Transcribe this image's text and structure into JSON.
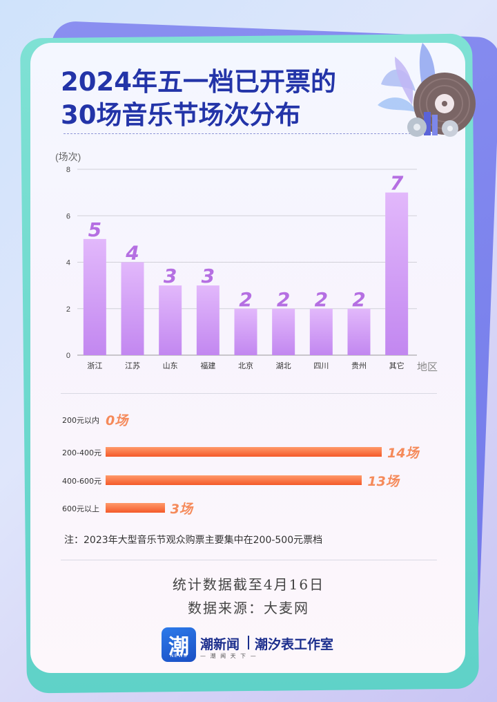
{
  "title": {
    "line1": "2024年五一档已开票的",
    "line2": "30场音乐节场次分布"
  },
  "colors": {
    "title": "#2334a8",
    "bar_top": "#e2b8fb",
    "bar_bottom": "#c287f0",
    "bar_label": "#b56fe2",
    "price_bar": "#f45a2a",
    "price_value": "#f58a5a"
  },
  "chart_data": [
    {
      "type": "bar",
      "ylabel": "(场次)",
      "xlabel": "地区",
      "ylim": [
        0,
        8
      ],
      "yticks": [
        0,
        2,
        4,
        6,
        8
      ],
      "grid": true,
      "categories": [
        "浙江",
        "江苏",
        "山东",
        "福建",
        "北京",
        "湖北",
        "四川",
        "贵州",
        "其它"
      ],
      "values": [
        5,
        4,
        3,
        3,
        2,
        2,
        2,
        2,
        7
      ]
    },
    {
      "type": "bar",
      "orientation": "horizontal",
      "categories": [
        "200元以内",
        "200-400元",
        "400-600元",
        "600元以上"
      ],
      "values": [
        0,
        14,
        13,
        3
      ],
      "value_labels": [
        "0场",
        "14场",
        "13场",
        "3场"
      ]
    }
  ],
  "note": "注：2023年大型音乐节观众购票主要集中在200-500元票档",
  "footer": {
    "cutoff": "统计数据截至4月16日",
    "source": "数据来源：大麦网"
  },
  "brand": {
    "logo_char": "潮",
    "logo_sub": "NEWS",
    "name": "潮新闻",
    "tagline": "— 潮 闻 天 下 —",
    "studio": "潮汐表工作室"
  },
  "icons": [
    "vinyl-record-icon",
    "leaf-decoration-icon"
  ]
}
